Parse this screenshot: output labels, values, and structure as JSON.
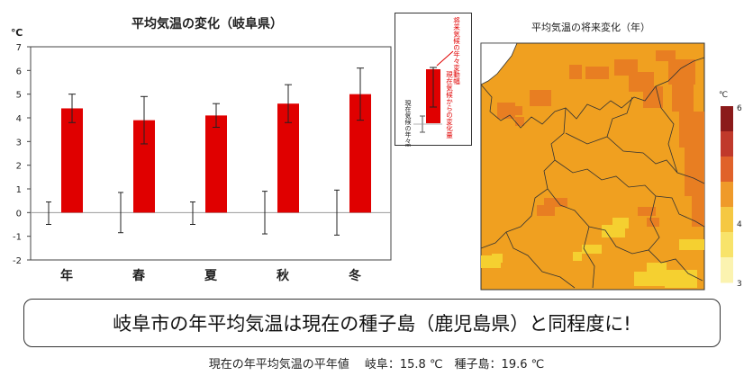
{
  "chart_data": [
    {
      "type": "bar",
      "title": "平均気温の変化（岐阜県）",
      "ylabel": "℃",
      "categories": [
        "年",
        "春",
        "夏",
        "秋",
        "冬"
      ],
      "series": [
        {
          "values": [
            4.4,
            3.9,
            4.1,
            4.6,
            5.0
          ],
          "error_high": [
            5.0,
            4.9,
            4.6,
            5.4,
            6.1
          ],
          "error_low": [
            3.8,
            2.9,
            3.6,
            3.8,
            3.9
          ]
        }
      ],
      "baseline_variability": [
        {
          "low": -0.5,
          "high": 0.45
        },
        {
          "low": -0.85,
          "high": 0.85
        },
        {
          "low": -0.5,
          "high": 0.45
        },
        {
          "low": -0.9,
          "high": 0.9
        },
        {
          "low": -0.95,
          "high": 0.95
        }
      ],
      "ylim": [
        -2,
        7
      ],
      "yticks": [
        -2,
        -1,
        0,
        1,
        2,
        3,
        4,
        5,
        6,
        7
      ],
      "bar_color": "#e00000",
      "grid": false
    }
  ],
  "legend": {
    "future_variability_label": "将来気候の年々変動幅",
    "change_label": "現在気候からの変化量",
    "present_variability_label": "現在気候の年々変動幅"
  },
  "map": {
    "title": "平均気温の将来変化（年）",
    "scale_unit": "℃",
    "scale_max_label": "6",
    "scale_mid_label": "4",
    "scale_min_label": "3",
    "colors": {
      "water": "#ffffff",
      "base": "#f0a020",
      "warm": "#e87e22",
      "cool": "#f5d030",
      "border": "#333333"
    },
    "scale_colors": [
      "#8b1a1a",
      "#c0392b",
      "#e0622a",
      "#ef9a2a",
      "#f5c842",
      "#f8e36a",
      "#fbf3b0"
    ]
  },
  "headline": "岐阜市の年平均気温は現在の種子島（鹿児島県）と同程度に!",
  "footnote": "現在の年平均気温の平年値　 岐阜：15.8 ℃　種子島：19.6 ℃"
}
